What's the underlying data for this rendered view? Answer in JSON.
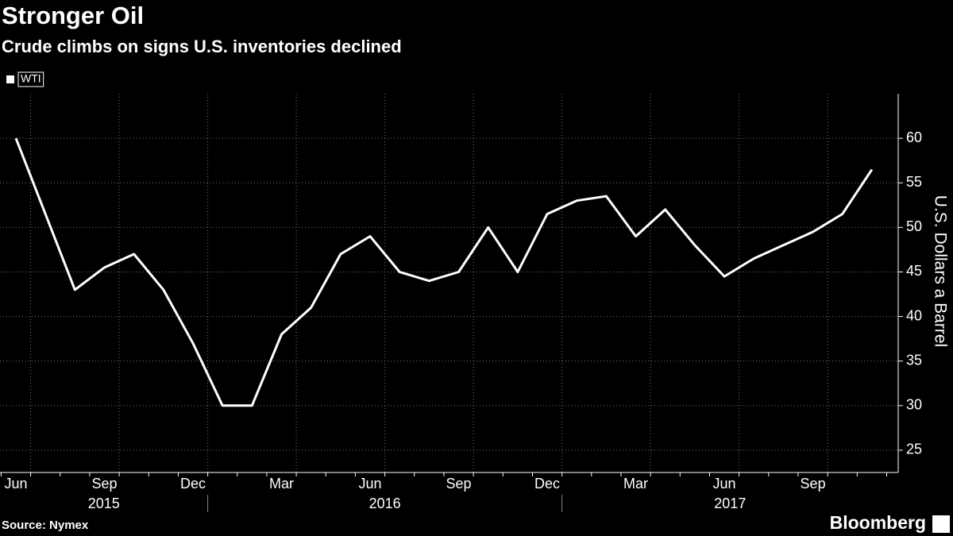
{
  "chart_data": {
    "type": "line",
    "title": "Stronger Oil",
    "subtitle": "Crude climbs on signs U.S. inventories declined",
    "y_axis_label": "U.S. Dollars a Barrel",
    "source": "Source: Nymex",
    "brand": "Bloomberg",
    "x": [
      "2015-06",
      "2015-07",
      "2015-08",
      "2015-09",
      "2015-10",
      "2015-11",
      "2015-12",
      "2016-01",
      "2016-02",
      "2016-03",
      "2016-04",
      "2016-05",
      "2016-06",
      "2016-07",
      "2016-08",
      "2016-09",
      "2016-10",
      "2016-11",
      "2016-12",
      "2017-01",
      "2017-02",
      "2017-03",
      "2017-04",
      "2017-05",
      "2017-06",
      "2017-07",
      "2017-08",
      "2017-09",
      "2017-10",
      "2017-11"
    ],
    "series": [
      {
        "name": "WTI",
        "color": "#ffffff",
        "values": [
          60,
          51.5,
          43,
          45.5,
          47,
          43,
          37,
          30,
          30,
          38,
          41,
          47,
          49,
          45,
          44,
          45,
          50,
          45,
          51.5,
          53,
          53.5,
          49,
          52,
          48,
          44.5,
          46.5,
          48,
          49.5,
          51.5,
          56.5
        ]
      }
    ],
    "xticks": [
      {
        "value": "2015-06",
        "label": "Jun"
      },
      {
        "value": "2015-09",
        "label": "Sep"
      },
      {
        "value": "2015-12",
        "label": "Dec"
      },
      {
        "value": "2016-03",
        "label": "Mar"
      },
      {
        "value": "2016-06",
        "label": "Jun"
      },
      {
        "value": "2016-09",
        "label": "Sep"
      },
      {
        "value": "2016-12",
        "label": "Dec"
      },
      {
        "value": "2017-03",
        "label": "Mar"
      },
      {
        "value": "2017-06",
        "label": "Jun"
      },
      {
        "value": "2017-09",
        "label": "Sep"
      }
    ],
    "x_groups": [
      "2015",
      "2016",
      "2017"
    ],
    "ylim": [
      22.5,
      65
    ],
    "yticks": [
      25,
      30,
      35,
      40,
      45,
      50,
      55,
      60
    ],
    "grid": true,
    "legend": "top-left"
  }
}
